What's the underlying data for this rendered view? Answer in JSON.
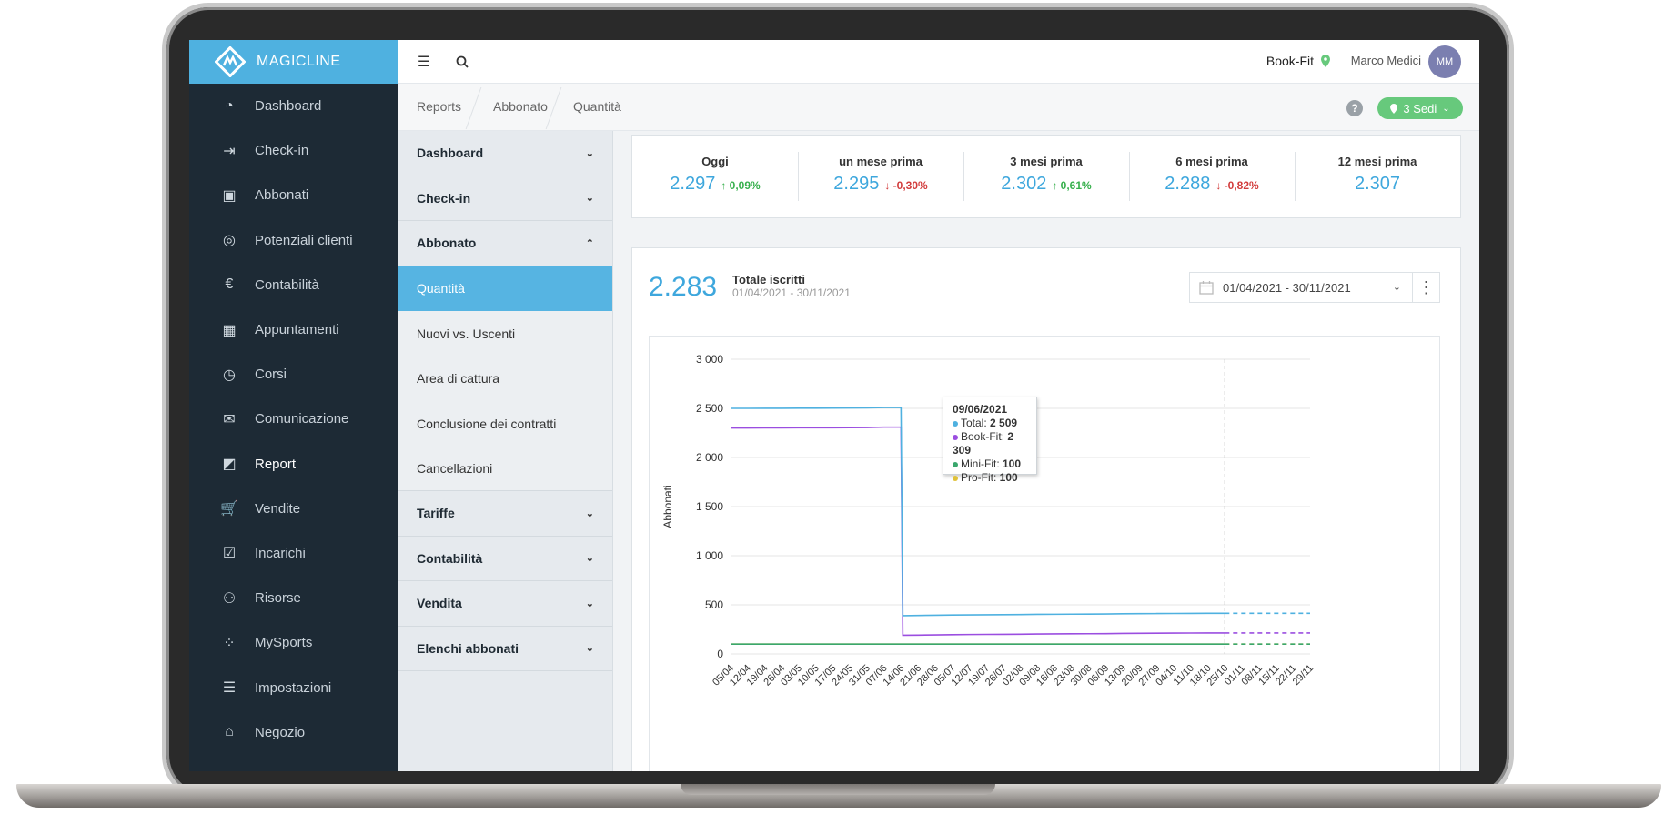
{
  "app": {
    "brand": "MAGICLINE"
  },
  "nav": {
    "items": [
      {
        "label": "Dashboard",
        "icon": "dashboard-icon"
      },
      {
        "label": "Check-in",
        "icon": "check-in-icon"
      },
      {
        "label": "Abbonati",
        "icon": "members-icon"
      },
      {
        "label": "Potenziali clienti",
        "icon": "target-icon"
      },
      {
        "label": "Contabilità",
        "icon": "euro-icon"
      },
      {
        "label": "Appuntamenti",
        "icon": "calendar-icon"
      },
      {
        "label": "Corsi",
        "icon": "stopwatch-icon"
      },
      {
        "label": "Comunicazione",
        "icon": "chat-icon"
      },
      {
        "label": "Report",
        "icon": "report-icon"
      },
      {
        "label": "Vendite",
        "icon": "cart-icon"
      },
      {
        "label": "Incarichi",
        "icon": "checkbox-icon"
      },
      {
        "label": "Risorse",
        "icon": "people-icon"
      },
      {
        "label": "MySports",
        "icon": "grid-icon"
      },
      {
        "label": "Impostazioni",
        "icon": "sliders-icon"
      },
      {
        "label": "Negozio",
        "icon": "shop-icon"
      }
    ],
    "active": "Report"
  },
  "topbar": {
    "gym": "Book-Fit",
    "user": "Marco Medici",
    "avatar": "MM"
  },
  "breadcrumb": [
    "Reports",
    "Abbonato",
    "Quantità"
  ],
  "sedi": {
    "label": "3 Sedi"
  },
  "submenu": {
    "dashboard": "Dashboard",
    "checkin": "Check-in",
    "abbonato": "Abbonato",
    "abbonato_items": [
      "Quantità",
      "Nuovi vs. Uscenti",
      "Area di cattura",
      "Conclusione dei contratti",
      "Cancellazioni"
    ],
    "tariffe": "Tariffe",
    "contabilita": "Contabilità",
    "vendita": "Vendita",
    "elenchi": "Elenchi abbonati"
  },
  "stats": [
    {
      "label": "Oggi",
      "value": "2.297",
      "change": "↑ 0,09%",
      "dir": "up"
    },
    {
      "label": "un mese prima",
      "value": "2.295",
      "change": "↓ -0,30%",
      "dir": "down"
    },
    {
      "label": "3 mesi prima",
      "value": "2.302",
      "change": "↑ 0,61%",
      "dir": "up"
    },
    {
      "label": "6 mesi prima",
      "value": "2.288",
      "change": "↓ -0,82%",
      "dir": "down"
    },
    {
      "label": "12 mesi prima",
      "value": "2.307",
      "change": "",
      "dir": ""
    }
  ],
  "summary": {
    "value": "2.283",
    "title": "Totale iscritti",
    "range": "01/04/2021 - 30/11/2021"
  },
  "datepicker": {
    "value": "01/04/2021 - 30/11/2021"
  },
  "tooltip": {
    "date": "09/06/2021",
    "rows": [
      {
        "name": "Total",
        "value": "2 509",
        "color": "#4fb1e0"
      },
      {
        "name": "Book-Fit",
        "value": "2 309",
        "color": "#9b4ee0"
      },
      {
        "name": "Mini-Fit",
        "value": "100",
        "color": "#3aa76d"
      },
      {
        "name": "Pro-Fit",
        "value": "100",
        "color": "#e0c23a"
      }
    ]
  },
  "colors": {
    "accent": "#4fb1e0",
    "nav_bg": "#1d2a35",
    "up": "#37b04d",
    "down": "#d23b3b",
    "sedi": "#67c97c"
  },
  "chart_data": {
    "type": "line",
    "ylabel": "Abbonati",
    "ylim": [
      0,
      3000
    ],
    "yticks": [
      0,
      500,
      1000,
      1500,
      2000,
      2500,
      3000
    ],
    "ytick_labels": [
      "0",
      "500",
      "1 000",
      "1 500",
      "2 000",
      "2 500",
      "3 000"
    ],
    "categories": [
      "05/04",
      "12/04",
      "19/04",
      "26/04",
      "03/05",
      "10/05",
      "17/05",
      "24/05",
      "31/05",
      "07/06",
      "14/06",
      "21/06",
      "28/06",
      "05/07",
      "12/07",
      "19/07",
      "26/07",
      "02/08",
      "09/08",
      "16/08",
      "23/08",
      "30/08",
      "06/09",
      "13/09",
      "20/09",
      "27/09",
      "04/10",
      "11/10",
      "18/10",
      "25/10",
      "01/11",
      "08/11",
      "15/11",
      "22/11",
      "29/11"
    ],
    "forecast_from": "25/10",
    "series": [
      {
        "name": "Total",
        "color": "#4fb1e0",
        "values": [
          2500,
          2500,
          2501,
          2501,
          2502,
          2502,
          2503,
          2504,
          2505,
          2509,
          390,
          392,
          394,
          396,
          398,
          399,
          400,
          401,
          403,
          404,
          405,
          406,
          407,
          409,
          410,
          411,
          412,
          413,
          414,
          414,
          414,
          414,
          414,
          414,
          414
        ]
      },
      {
        "name": "Book-Fit",
        "color": "#9b4ee0",
        "values": [
          2300,
          2300,
          2301,
          2301,
          2302,
          2302,
          2303,
          2304,
          2305,
          2309,
          190,
          192,
          194,
          196,
          198,
          199,
          200,
          201,
          203,
          204,
          205,
          206,
          207,
          209,
          210,
          211,
          212,
          213,
          214,
          214,
          214,
          214,
          214,
          214,
          214
        ]
      },
      {
        "name": "Mini-Fit",
        "color": "#3aa76d",
        "values": [
          100,
          100,
          100,
          100,
          100,
          100,
          100,
          100,
          100,
          100,
          100,
          100,
          100,
          100,
          100,
          100,
          100,
          100,
          100,
          100,
          100,
          100,
          100,
          100,
          100,
          100,
          100,
          100,
          100,
          100,
          100,
          100,
          100,
          100,
          100
        ]
      },
      {
        "name": "Pro-Fit",
        "color": "#e0c23a",
        "values": [
          100,
          100,
          100,
          100,
          100,
          100,
          100,
          100,
          100,
          100,
          100,
          100,
          100,
          100,
          100,
          100,
          100,
          100,
          100,
          100,
          100,
          100,
          100,
          100,
          100,
          100,
          100,
          100,
          100,
          100,
          100,
          100,
          100,
          100,
          100
        ]
      }
    ]
  }
}
